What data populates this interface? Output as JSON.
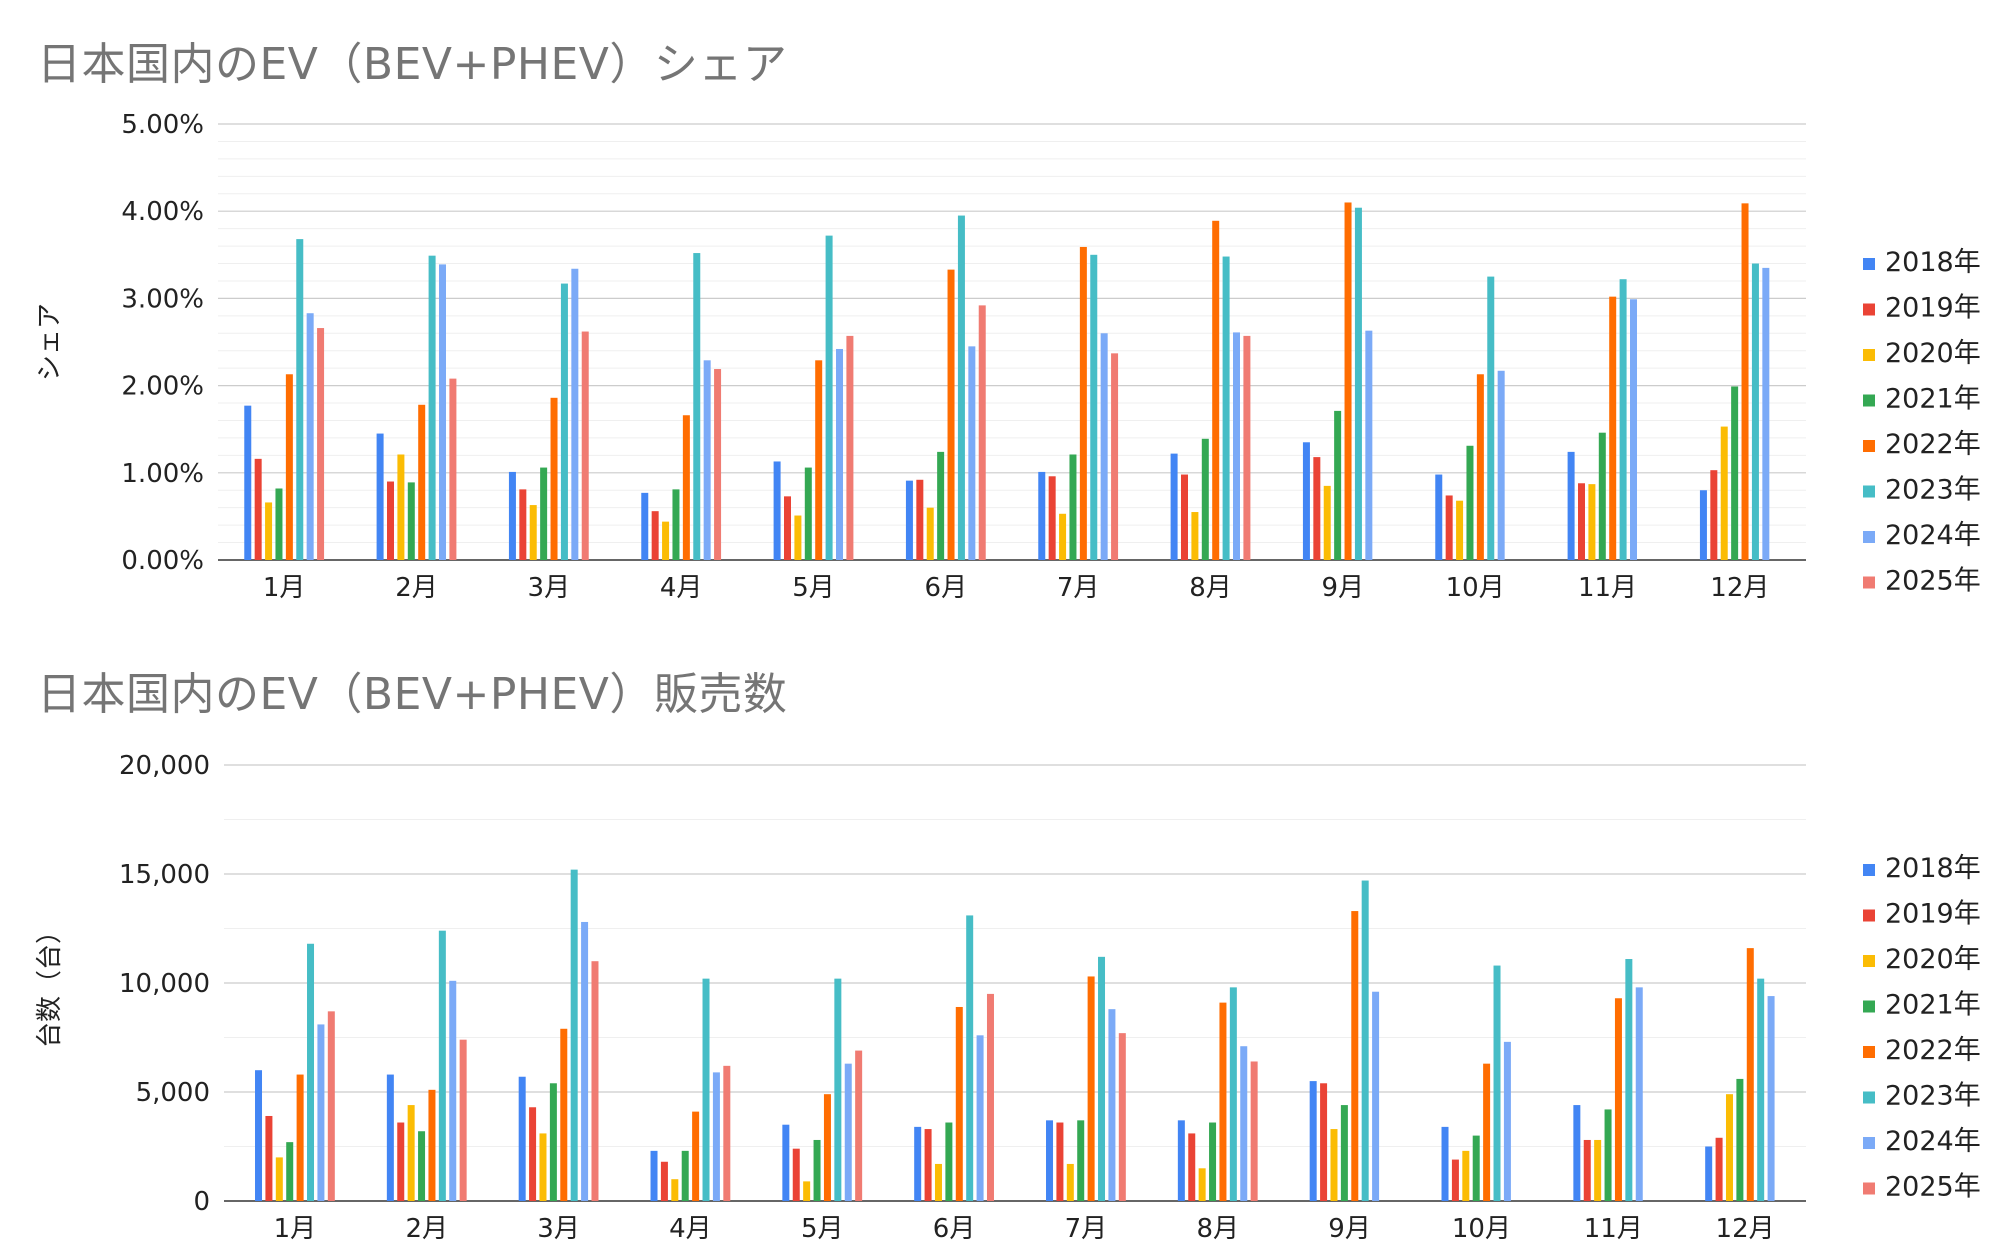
{
  "chart_data": [
    {
      "type": "bar",
      "title": "日本国内のEV（BEV+PHEV）シェア",
      "xlabel": "",
      "ylabel": "シェア",
      "ylim": [
        0,
        0.05
      ],
      "yticks": [
        "0.00%",
        "1.00%",
        "2.00%",
        "3.00%",
        "4.00%",
        "5.00%"
      ],
      "grid": true,
      "legend": "right",
      "categories": [
        "1月",
        "2月",
        "3月",
        "4月",
        "5月",
        "6月",
        "7月",
        "8月",
        "9月",
        "10月",
        "11月",
        "12月"
      ],
      "series": [
        {
          "name": "2018年",
          "color": "#4285f4",
          "values": [
            0.0177,
            0.0145,
            0.0101,
            0.0077,
            0.0113,
            0.0091,
            0.0101,
            0.0122,
            0.0135,
            0.0098,
            0.0124,
            0.008
          ]
        },
        {
          "name": "2019年",
          "color": "#ea4335",
          "values": [
            0.0116,
            0.009,
            0.0081,
            0.0056,
            0.0073,
            0.0092,
            0.0096,
            0.0098,
            0.0118,
            0.0074,
            0.0088,
            0.0103
          ]
        },
        {
          "name": "2020年",
          "color": "#fbbc04",
          "values": [
            0.0066,
            0.0121,
            0.0063,
            0.0044,
            0.0051,
            0.006,
            0.0053,
            0.0055,
            0.0085,
            0.0068,
            0.0087,
            0.0153
          ]
        },
        {
          "name": "2021年",
          "color": "#34a853",
          "values": [
            0.0082,
            0.0089,
            0.0106,
            0.0081,
            0.0106,
            0.0124,
            0.0121,
            0.0139,
            0.0171,
            0.0131,
            0.0146,
            0.0199
          ]
        },
        {
          "name": "2022年",
          "color": "#ff6d01",
          "values": [
            0.0213,
            0.0178,
            0.0186,
            0.0166,
            0.0229,
            0.0333,
            0.0359,
            0.0389,
            0.041,
            0.0213,
            0.0302,
            0.0409
          ]
        },
        {
          "name": "2023年",
          "color": "#46bdc6",
          "values": [
            0.0368,
            0.0349,
            0.0317,
            0.0352,
            0.0372,
            0.0395,
            0.035,
            0.0348,
            0.0404,
            0.0325,
            0.0322,
            0.034
          ]
        },
        {
          "name": "2024年",
          "color": "#7baaf7",
          "values": [
            0.0283,
            0.0339,
            0.0334,
            0.0229,
            0.0242,
            0.0245,
            0.026,
            0.0261,
            0.0263,
            0.0217,
            0.0299,
            0.0335
          ]
        },
        {
          "name": "2025年",
          "color": "#f07b72",
          "values": [
            0.0266,
            0.0208,
            0.0262,
            0.0219,
            0.0257,
            0.0292,
            0.0237,
            0.0257,
            null,
            null,
            null,
            null
          ]
        }
      ]
    },
    {
      "type": "bar",
      "title": "日本国内のEV（BEV+PHEV）販売数",
      "xlabel": "",
      "ylabel": "台数（台）",
      "ylim": [
        0,
        20000
      ],
      "yticks": [
        "0",
        "5,000",
        "10,000",
        "15,000",
        "20,000"
      ],
      "grid": true,
      "legend": "right",
      "categories": [
        "1月",
        "2月",
        "3月",
        "4月",
        "5月",
        "6月",
        "7月",
        "8月",
        "9月",
        "10月",
        "11月",
        "12月"
      ],
      "series": [
        {
          "name": "2018年",
          "color": "#4285f4",
          "values": [
            6000,
            5800,
            5700,
            2300,
            3500,
            3400,
            3700,
            3700,
            5500,
            3400,
            4400,
            2500
          ]
        },
        {
          "name": "2019年",
          "color": "#ea4335",
          "values": [
            3900,
            3600,
            4300,
            1800,
            2400,
            3300,
            3600,
            3100,
            5400,
            1900,
            2800,
            2900
          ]
        },
        {
          "name": "2020年",
          "color": "#fbbc04",
          "values": [
            2000,
            4400,
            3100,
            1000,
            900,
            1700,
            1700,
            1500,
            3300,
            2300,
            2800,
            4900
          ]
        },
        {
          "name": "2021年",
          "color": "#34a853",
          "values": [
            2700,
            3200,
            5400,
            2300,
            2800,
            3600,
            3700,
            3600,
            4400,
            3000,
            4200,
            5600
          ]
        },
        {
          "name": "2022年",
          "color": "#ff6d01",
          "values": [
            5800,
            5100,
            7900,
            4100,
            4900,
            8900,
            10300,
            9100,
            13300,
            6300,
            9300,
            11600
          ]
        },
        {
          "name": "2023年",
          "color": "#46bdc6",
          "values": [
            11800,
            12400,
            15200,
            10200,
            10200,
            13100,
            11200,
            9800,
            14700,
            10800,
            11100,
            10200
          ]
        },
        {
          "name": "2024年",
          "color": "#7baaf7",
          "values": [
            8100,
            10100,
            12800,
            5900,
            6300,
            7600,
            8800,
            7100,
            9600,
            7300,
            9800,
            9400
          ]
        },
        {
          "name": "2025年",
          "color": "#f07b72",
          "values": [
            8700,
            7400,
            11000,
            6200,
            6900,
            9500,
            7700,
            6400,
            null,
            null,
            null,
            null
          ]
        }
      ]
    }
  ]
}
